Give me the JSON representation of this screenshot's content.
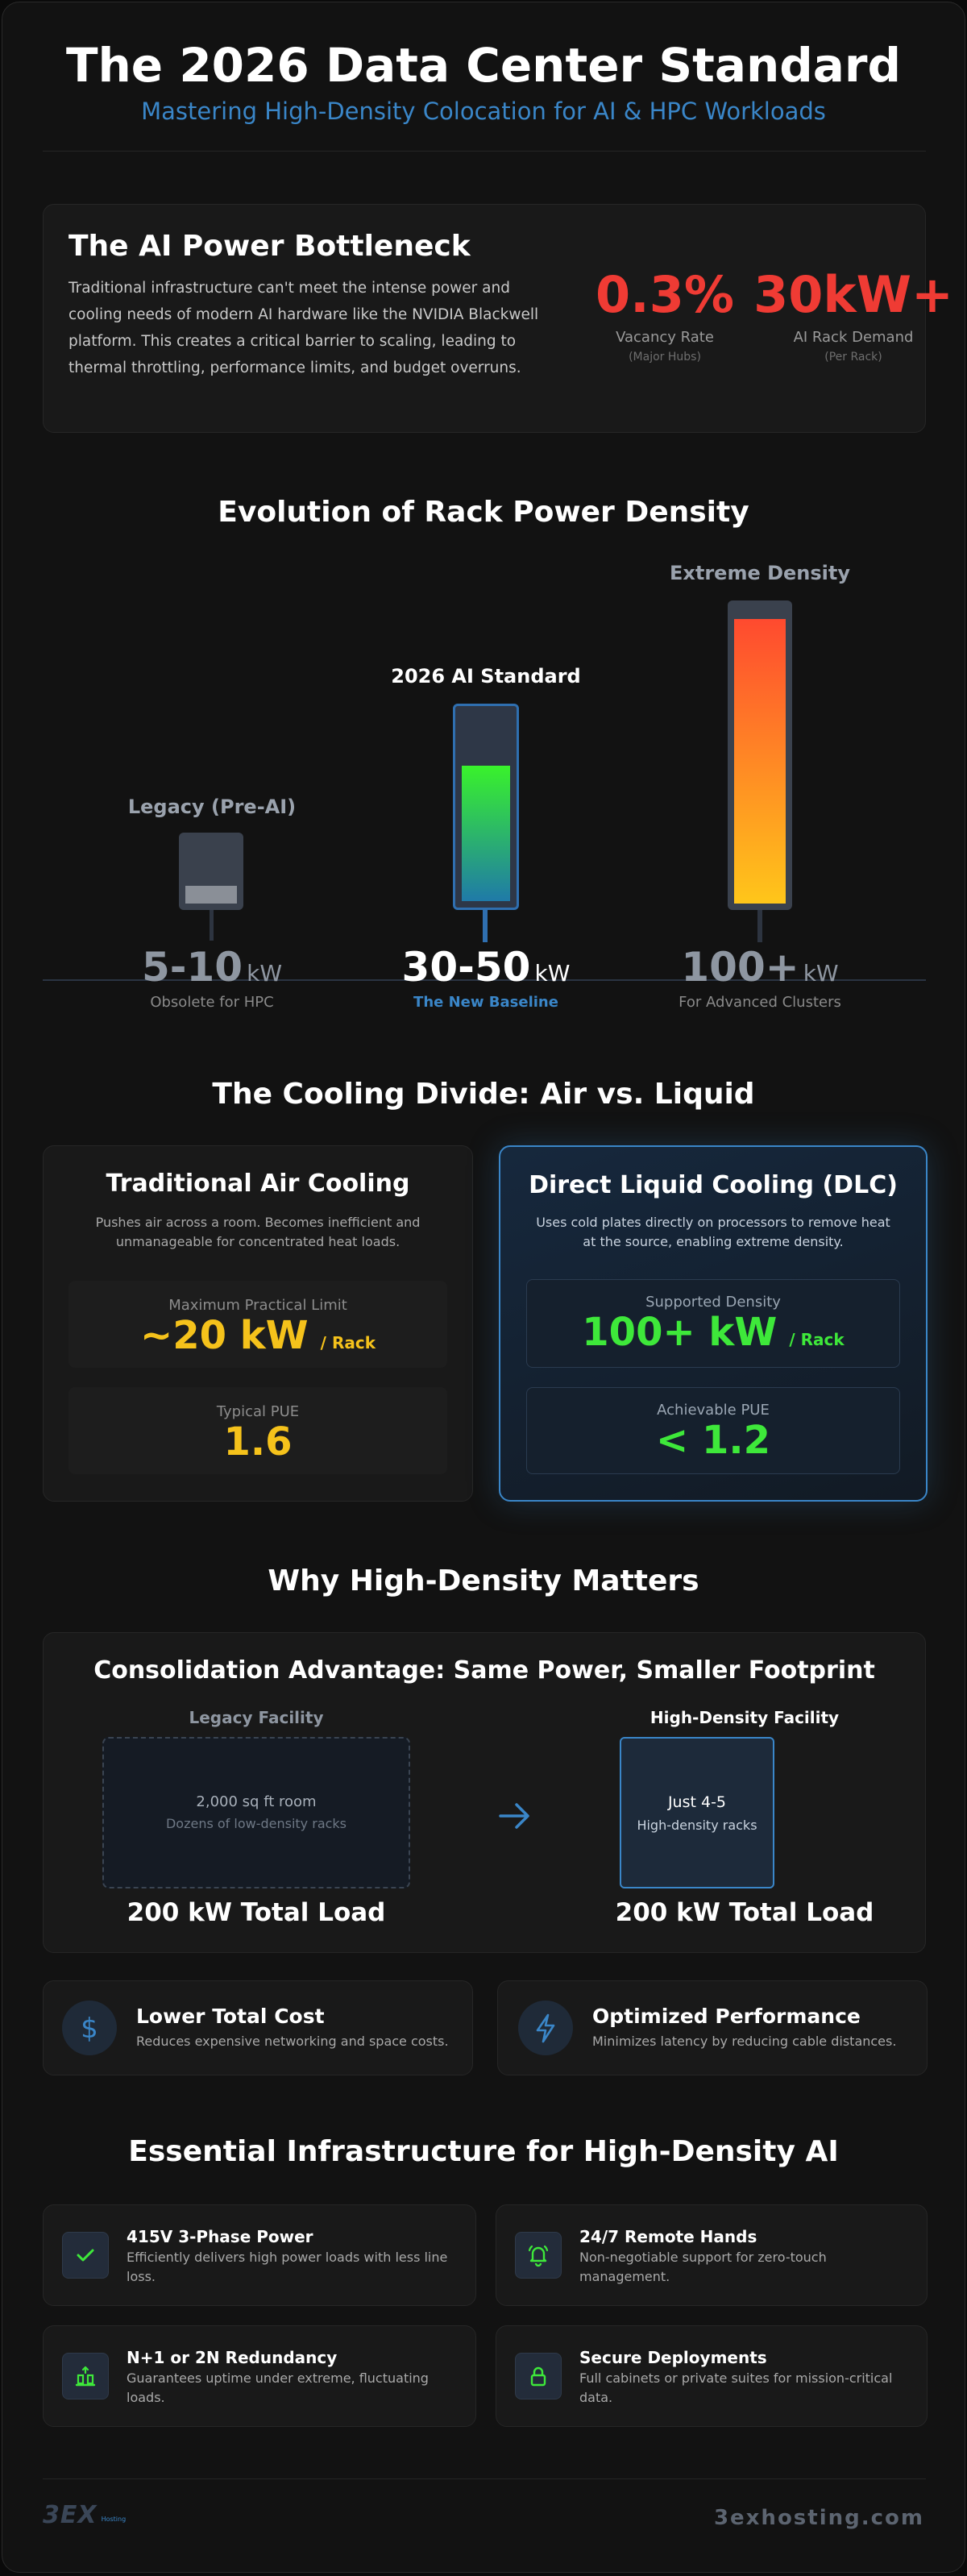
{
  "header": {
    "title": "The 2026 Data Center Standard",
    "subtitle": "Mastering High-Density Colocation for AI & HPC Workloads"
  },
  "bottleneck": {
    "title": "The AI Power Bottleneck",
    "text": "Traditional infrastructure can't meet the intense power and cooling needs of modern AI hardware like the NVIDIA Blackwell platform. This creates a critical barrier to scaling, leading to thermal throttling, performance limits, and budget overruns.",
    "stats": [
      {
        "value": "0.3%",
        "label": "Vacancy Rate",
        "sub": "(Major Hubs)"
      },
      {
        "value": "30kW+",
        "label": "AI Rack Demand",
        "sub": "(Per Rack)"
      }
    ]
  },
  "evolution": {
    "title": "Evolution of Rack Power Density",
    "racks": [
      {
        "label": "Legacy (Pre-AI)",
        "value": "5-10",
        "unit": "kW",
        "caption": "Obsolete for HPC",
        "fill": 0.28
      },
      {
        "label": "2026 AI Standard",
        "value": "30-50",
        "unit": "kW",
        "caption": "The New Baseline",
        "fill": 0.72
      },
      {
        "label": "Extreme Density",
        "value": "100+",
        "unit": "kW",
        "caption": "For Advanced Clusters",
        "fill": 0.96
      }
    ]
  },
  "cooling": {
    "title": "The Cooling Divide: Air vs. Liquid",
    "air": {
      "title": "Traditional Air Cooling",
      "desc": "Pushes air across a room. Becomes inefficient and unmanageable for concentrated heat loads.",
      "limit_label": "Maximum Practical Limit",
      "limit_value": "~20 kW",
      "limit_unit": "/ Rack",
      "pue_label": "Typical PUE",
      "pue_value": "1.6"
    },
    "liquid": {
      "title": "Direct Liquid Cooling (DLC)",
      "desc": "Uses cold plates directly on processors to remove heat at the source, enabling extreme density.",
      "density_label": "Supported Density",
      "density_value": "100+ kW",
      "density_unit": "/ Rack",
      "pue_label": "Achievable PUE",
      "pue_value": "< 1.2"
    }
  },
  "why": {
    "title": "Why High-Density Matters",
    "consolidation": {
      "title": "Consolidation Advantage: Same Power, Smaller Footprint",
      "legacy_label": "Legacy Facility",
      "legacy_room": "2,000 sq ft room",
      "legacy_racks": "Dozens of low-density racks",
      "legacy_total": "200 kW Total Load",
      "hd_label": "High-Density Facility",
      "hd_room": "Just 4-5",
      "hd_racks": "High-density racks",
      "hd_total": "200 kW Total Load"
    },
    "features": [
      {
        "title": "Lower Total Cost",
        "desc": "Reduces expensive networking and space costs.",
        "icon": "dollar-icon"
      },
      {
        "title": "Optimized Performance",
        "desc": "Minimizes latency by reducing cable distances.",
        "icon": "lightning-icon"
      }
    ]
  },
  "essential": {
    "title": "Essential Infrastructure for High-Density AI",
    "items": [
      {
        "title": "415V 3-Phase Power",
        "desc": "Efficiently delivers high power loads with less line loss.",
        "icon": "check-icon"
      },
      {
        "title": "24/7 Remote Hands",
        "desc": "Non-negotiable support for zero-touch management.",
        "icon": "bell-icon"
      },
      {
        "title": "N+1 or 2N Redundancy",
        "desc": "Guarantees uptime under extreme, fluctuating loads.",
        "icon": "redundancy-icon"
      },
      {
        "title": "Secure Deployments",
        "desc": "Full cabinets or private suites for mission-critical data.",
        "icon": "lock-icon"
      }
    ]
  },
  "footer": {
    "logo": "3EX",
    "logo_small": "Hosting",
    "domain": "3exhosting.com"
  },
  "colors": {
    "red": "#ef3b34",
    "yellow": "#f5c21b",
    "green": "#3ee83a",
    "blue": "#3a86c8"
  }
}
